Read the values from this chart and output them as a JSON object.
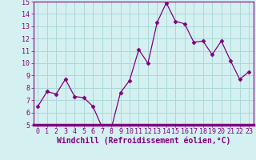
{
  "x": [
    0,
    1,
    2,
    3,
    4,
    5,
    6,
    7,
    8,
    9,
    10,
    11,
    12,
    13,
    14,
    15,
    16,
    17,
    18,
    19,
    20,
    21,
    22,
    23
  ],
  "y": [
    6.5,
    7.7,
    7.5,
    8.7,
    7.3,
    7.2,
    6.5,
    4.8,
    4.7,
    7.6,
    8.6,
    11.1,
    10.0,
    13.3,
    14.9,
    13.4,
    13.2,
    11.7,
    11.8,
    10.7,
    11.8,
    10.2,
    8.7,
    9.3
  ],
  "line_color": "#800080",
  "marker": "D",
  "marker_size": 2.5,
  "bg_color": "#d5f0f0",
  "grid_color": "#aad8d8",
  "xlabel": "Windchill (Refroidissement éolien,°C)",
  "ylim": [
    5,
    15
  ],
  "xlim": [
    -0.5,
    23.5
  ],
  "yticks": [
    5,
    6,
    7,
    8,
    9,
    10,
    11,
    12,
    13,
    14,
    15
  ],
  "xticks": [
    0,
    1,
    2,
    3,
    4,
    5,
    6,
    7,
    8,
    9,
    10,
    11,
    12,
    13,
    14,
    15,
    16,
    17,
    18,
    19,
    20,
    21,
    22,
    23
  ],
  "tick_color": "#800080",
  "spine_color": "#800080",
  "tick_fontsize": 6,
  "xlabel_fontsize": 7
}
